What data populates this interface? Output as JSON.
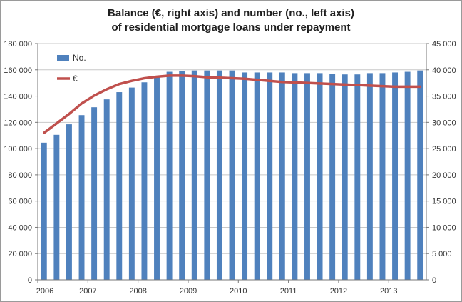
{
  "chart_data": {
    "type": "bar",
    "title": "Balance (€, right axis) and number (no., left axis)",
    "subtitle": "of residential mortgage loans under repayment",
    "x_tick_labels": [
      "2006",
      "2007",
      "2008",
      "2009",
      "2010",
      "2011",
      "2012",
      "2013"
    ],
    "y_left": {
      "ylim": [
        0,
        180000
      ],
      "tick_labels": [
        "0",
        "20 000",
        "40 000",
        "60 000",
        "80 000",
        "100 000",
        "120 000",
        "140 000",
        "160 000",
        "180 000"
      ]
    },
    "y_right": {
      "ylim": [
        0,
        45000
      ],
      "tick_labels": [
        "0",
        "5 000",
        "10 000",
        "15 000",
        "20 000",
        "25 000",
        "30 000",
        "35 000",
        "40 000",
        "45 000"
      ]
    },
    "grid": true,
    "legend_position": "top-left",
    "series": [
      {
        "name": "No.",
        "type": "bar",
        "axis": "left",
        "color": "#4f81bd",
        "values": [
          104500,
          110500,
          118500,
          125500,
          131500,
          137500,
          143000,
          146500,
          150500,
          155500,
          158500,
          159000,
          159500,
          159500,
          159500,
          159500,
          158000,
          158000,
          158000,
          158000,
          157500,
          157500,
          157500,
          157000,
          156500,
          156500,
          157500,
          157500,
          158000,
          158500,
          159500
        ]
      },
      {
        "name": "€",
        "type": "line",
        "axis": "right",
        "color": "#c0504d",
        "values": [
          28000,
          29800,
          31600,
          33600,
          35100,
          36300,
          37300,
          37900,
          38400,
          38700,
          38900,
          38900,
          38800,
          38600,
          38500,
          38400,
          38300,
          38100,
          37900,
          37700,
          37600,
          37500,
          37400,
          37300,
          37200,
          37100,
          37000,
          36900,
          36800,
          36800,
          36800
        ]
      }
    ]
  }
}
